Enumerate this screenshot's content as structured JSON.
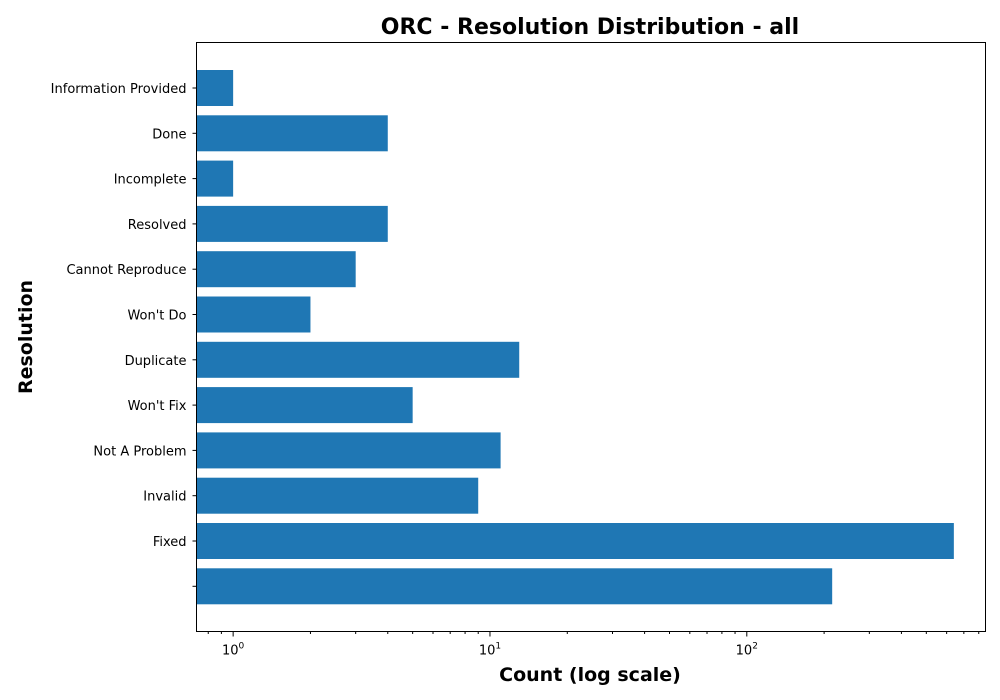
{
  "chart_data": {
    "type": "bar",
    "orientation": "horizontal",
    "title": "ORC - Resolution Distribution - all",
    "xlabel": "Count (log scale)",
    "ylabel": "Resolution",
    "x_scale": "log",
    "xlim": [
      0.72,
      850
    ],
    "x_major_ticks": [
      {
        "value": 1,
        "base": "10",
        "exp": "0"
      },
      {
        "value": 10,
        "base": "10",
        "exp": "1"
      },
      {
        "value": 100,
        "base": "10",
        "exp": "2"
      }
    ],
    "bar_color": "#1f77b4",
    "categories": [
      "Information Provided",
      "Done",
      "Incomplete",
      "Resolved",
      "Cannot Reproduce",
      "Won't Do",
      "Duplicate",
      "Won't Fix",
      "Not A Problem",
      "Invalid",
      "Fixed",
      ""
    ],
    "values": [
      1,
      4,
      1,
      4,
      3,
      2,
      13,
      5,
      11,
      9,
      640,
      215
    ],
    "grid": false,
    "legend": "none"
  }
}
